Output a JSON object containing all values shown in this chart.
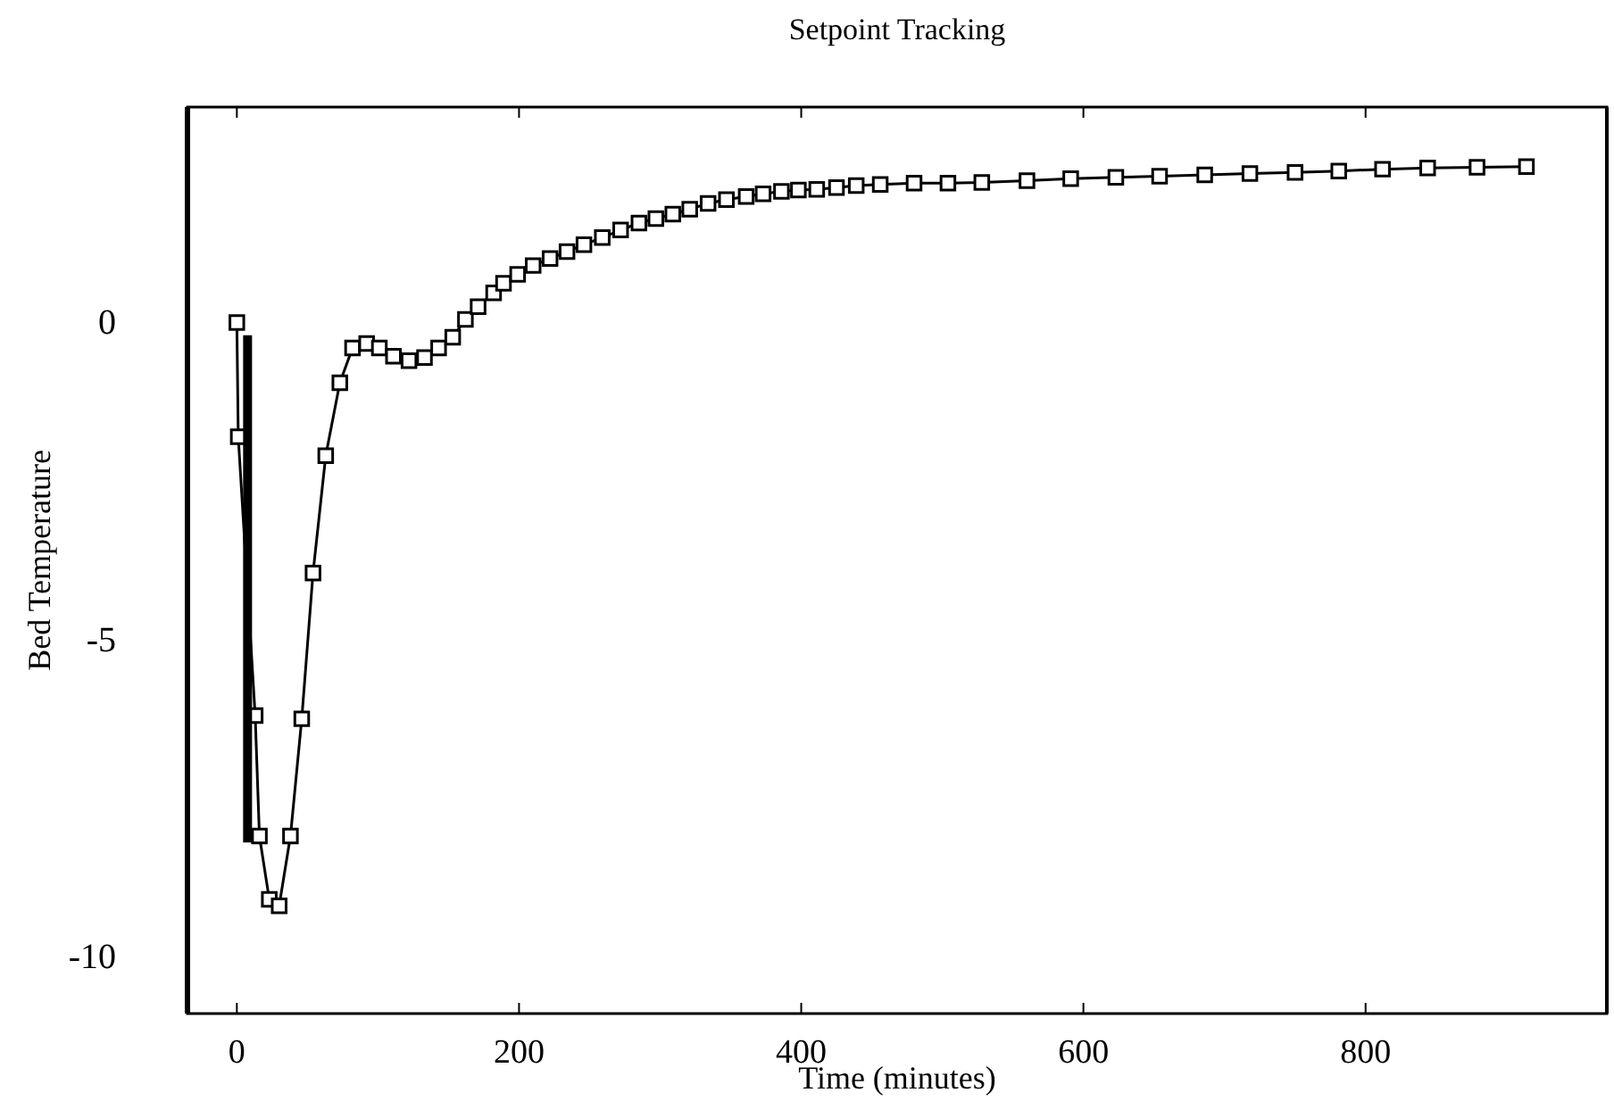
{
  "chart_data": {
    "type": "line",
    "title": "Setpoint Tracking",
    "xlabel": "Time (minutes)",
    "ylabel": "Bed Temperature",
    "xlim": [
      -35,
      971
    ],
    "ylim": [
      -10.9,
      3.4
    ],
    "xticks": [
      0,
      200,
      400,
      600,
      800
    ],
    "yticks": [
      0,
      -5,
      -10
    ],
    "grid": false,
    "line_style": "solid",
    "series": [
      {
        "color": "#000000",
        "marker": "square",
        "x": [
          0,
          1,
          13,
          16,
          23,
          30,
          38,
          46,
          54,
          63,
          73,
          82,
          92,
          101,
          111,
          122,
          133,
          143,
          153,
          162,
          171,
          182,
          189,
          199,
          210,
          222,
          234,
          246,
          259,
          272,
          285,
          297,
          309,
          321,
          334,
          347,
          361,
          373,
          386,
          398,
          411,
          425,
          439,
          456,
          480,
          504,
          528,
          560,
          591,
          623,
          654,
          686,
          718,
          750,
          781,
          812,
          844,
          879,
          914
        ],
        "values": [
          0.0,
          -1.8,
          -6.2,
          -8.1,
          -9.1,
          -9.2,
          -8.1,
          -6.25,
          -3.95,
          -2.1,
          -0.95,
          -0.4,
          -0.33,
          -0.4,
          -0.53,
          -0.6,
          -0.55,
          -0.4,
          -0.23,
          0.05,
          0.25,
          0.47,
          0.62,
          0.76,
          0.9,
          1.01,
          1.12,
          1.23,
          1.34,
          1.46,
          1.57,
          1.64,
          1.71,
          1.79,
          1.88,
          1.94,
          1.99,
          2.03,
          2.07,
          2.09,
          2.1,
          2.13,
          2.16,
          2.18,
          2.2,
          2.2,
          2.21,
          2.24,
          2.27,
          2.29,
          2.31,
          2.33,
          2.35,
          2.37,
          2.39,
          2.42,
          2.44,
          2.45,
          2.46
        ]
      },
      {
        "color": "#000000",
        "marker": "none",
        "x": [
          7.6,
          7.6
        ],
        "values": [
          -0.2,
          -8.2
        ]
      }
    ]
  }
}
